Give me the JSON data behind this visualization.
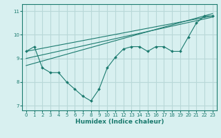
{
  "title": "",
  "xlabel": "Humidex (Indice chaleur)",
  "ylabel": "",
  "background_color": "#d8f0f0",
  "grid_color": "#b8d8d8",
  "line_color": "#1a7a6e",
  "xlim": [
    -0.5,
    23.5
  ],
  "ylim": [
    6.8,
    11.3
  ],
  "xticks": [
    0,
    1,
    2,
    3,
    4,
    5,
    6,
    7,
    8,
    9,
    10,
    11,
    12,
    13,
    14,
    15,
    16,
    17,
    18,
    19,
    20,
    21,
    22,
    23
  ],
  "yticks": [
    7,
    8,
    9,
    10,
    11
  ],
  "data_x": [
    0,
    1,
    2,
    3,
    4,
    5,
    6,
    7,
    8,
    9,
    10,
    11,
    12,
    13,
    14,
    15,
    16,
    17,
    18,
    19,
    20,
    21,
    22,
    23
  ],
  "data_y": [
    9.3,
    9.5,
    8.6,
    8.4,
    8.4,
    8.0,
    7.7,
    7.4,
    7.2,
    7.7,
    8.6,
    9.05,
    9.4,
    9.5,
    9.5,
    9.3,
    9.5,
    9.5,
    9.3,
    9.3,
    9.9,
    10.5,
    10.8,
    10.8
  ],
  "trend1_x": [
    0,
    23
  ],
  "trend1_y": [
    9.3,
    10.8
  ],
  "trend2_x": [
    0,
    23
  ],
  "trend2_y": [
    8.7,
    10.9
  ],
  "trend3_x": [
    0,
    23
  ],
  "trend3_y": [
    9.0,
    10.75
  ]
}
